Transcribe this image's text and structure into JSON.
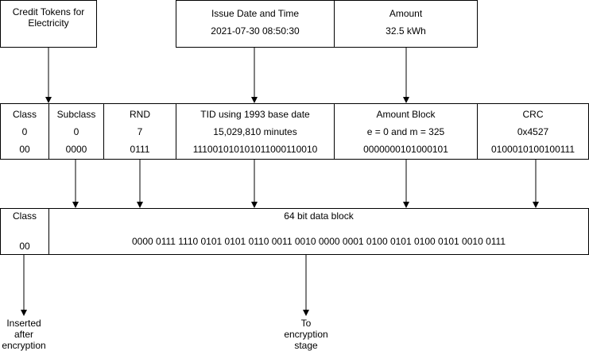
{
  "sources": {
    "credit_tokens": "Credit Tokens for Electricity",
    "issue_date_title": "Issue Date and Time",
    "issue_date_value": "2021-07-30 08:50:30",
    "amount_title": "Amount",
    "amount_value": "32.5 kWh"
  },
  "fields": [
    {
      "name": "Class",
      "decimal": "0",
      "binary": "00"
    },
    {
      "name": "Subclass",
      "decimal": "0",
      "binary": "0000"
    },
    {
      "name": "RND",
      "decimal": "7",
      "binary": "0111"
    },
    {
      "name": "TID using 1993 base date",
      "decimal": "15,029,810 minutes",
      "binary": "111001010101011000110010"
    },
    {
      "name": "Amount Block",
      "decimal": "e = 0 and m = 325",
      "binary": "0000000101000101"
    },
    {
      "name": "CRC",
      "decimal": "0x4527",
      "binary": "0100010100100111"
    }
  ],
  "output": {
    "class_label": "Class",
    "class_value": "00",
    "block_title": "64 bit data block",
    "block_value": "0000 0111 1110 0101 0101 0110 0011 0010 0000 0001 0100 0101 0100 0101 0010 0111"
  },
  "notes": {
    "inserted": "Inserted after encryption",
    "to_encryption": "To encryption stage"
  }
}
